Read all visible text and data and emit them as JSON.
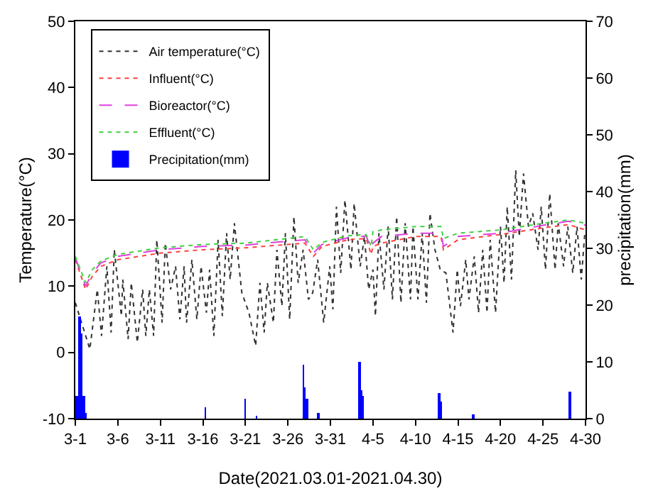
{
  "chart_data": {
    "type": "line",
    "xlabel": "Date(2021.03.01-2021.04.30)",
    "ylabel": "Temperature(°C)",
    "y2label": "precipitation(mm)",
    "x": [
      "2021-03-01",
      "2021-03-02T05:00",
      "2021-03-03",
      "2021-03-04",
      "2021-03-06",
      "2021-03-11",
      "2021-03-16",
      "2021-03-21",
      "2021-03-26",
      "2021-03-28",
      "2021-03-29",
      "2021-03-30",
      "2021-04-02",
      "2021-04-04T05:00",
      "2021-04-04T19:00",
      "2021-04-05",
      "2021-04-06",
      "2021-04-10",
      "2021-04-13",
      "2021-04-13T07:00",
      "2021-04-15",
      "2021-04-20",
      "2021-04-25",
      "2021-04-28",
      "2021-04-30"
    ],
    "series": [
      {
        "name": "Air temperature(°C)",
        "color": "#333333",
        "line_style": "dotted",
        "x": [
          "2021-03-01T00:00",
          "2021-03-02T17:00",
          "2021-03-03T14:00",
          "2021-03-04T02:00",
          "2021-03-04T17:00",
          "2021-03-05T05:00",
          "2021-03-05T14:00",
          "2021-03-06T10:00",
          "2021-03-06T14:00",
          "2021-03-07T05:00",
          "2021-03-07T14:00",
          "2021-03-08T07:00",
          "2021-03-08T22:00",
          "2021-03-09T07:00",
          "2021-03-09T17:00",
          "2021-03-10T05:00",
          "2021-03-10T14:00",
          "2021-03-11T05:00",
          "2021-03-11T14:00",
          "2021-03-12T05:00",
          "2021-03-12T19:00",
          "2021-03-13T07:00",
          "2021-03-13T19:00",
          "2021-03-14T02:00",
          "2021-03-14T17:00",
          "2021-03-15T07:00",
          "2021-03-15T19:00",
          "2021-03-16T10:00",
          "2021-03-16T19:00",
          "2021-03-17T07:00",
          "2021-03-17T19:00",
          "2021-03-18T07:00",
          "2021-03-18T19:00",
          "2021-03-19T05:00",
          "2021-03-19T17:00",
          "2021-03-20T14:00",
          "2021-03-21T10:00",
          "2021-03-22T05:00",
          "2021-03-22T17:00",
          "2021-03-23T05:00",
          "2021-03-23T14:00",
          "2021-03-24T07:00",
          "2021-03-24T17:00",
          "2021-03-25T07:00",
          "2021-03-25T17:00",
          "2021-03-26T05:00",
          "2021-03-26T17:00",
          "2021-03-27T05:00",
          "2021-03-27T19:00",
          "2021-03-28T10:00",
          "2021-03-28T22:00",
          "2021-03-29T12:00",
          "2021-03-30T05:00",
          "2021-03-30T22:00",
          "2021-03-31T07:00",
          "2021-03-31T17:00",
          "2021-04-01T05:00",
          "2021-04-01T17:00",
          "2021-04-02T10:00",
          "2021-04-02T19:00",
          "2021-04-03T12:00",
          "2021-04-04T00:00",
          "2021-04-04T12:00",
          "2021-04-05T00:00",
          "2021-04-05T07:00",
          "2021-04-05T17:00",
          "2021-04-06T07:00",
          "2021-04-06T19:00",
          "2021-04-07T07:00",
          "2021-04-07T19:00",
          "2021-04-08T07:00",
          "2021-04-08T19:00",
          "2021-04-09T10:00",
          "2021-04-09T17:00",
          "2021-04-10T07:00",
          "2021-04-10T19:00",
          "2021-04-11T07:00",
          "2021-04-11T17:00",
          "2021-04-12T07:00",
          "2021-04-12T22:00",
          "2021-04-13T14:00",
          "2021-04-14T10:00",
          "2021-04-14T22:00",
          "2021-04-15T07:00",
          "2021-04-15T22:00",
          "2021-04-16T07:00",
          "2021-04-16T22:00",
          "2021-04-17T10:00",
          "2021-04-17T22:00",
          "2021-04-18T10:00",
          "2021-04-18T19:00",
          "2021-04-19T10:00",
          "2021-04-20T00:00",
          "2021-04-20T10:00",
          "2021-04-20T19:00",
          "2021-04-21T07:00",
          "2021-04-21T19:00",
          "2021-04-22T05:00",
          "2021-04-22T17:00",
          "2021-04-23T07:00",
          "2021-04-23T19:00",
          "2021-04-24T10:00",
          "2021-04-24T19:00",
          "2021-04-25T07:00",
          "2021-04-25T19:00",
          "2021-04-26T10:00",
          "2021-04-26T19:00",
          "2021-04-27T10:00",
          "2021-04-27T22:00",
          "2021-04-28T12:00",
          "2021-04-29T00:00",
          "2021-04-29T12:00",
          "2021-04-29T22:00"
        ],
        "values": [
          7.5,
          0.5,
          9.5,
          2.5,
          13,
          3,
          15.5,
          5.5,
          11,
          2,
          10.5,
          1.5,
          9.5,
          2.5,
          9.5,
          2.5,
          17,
          4.5,
          16.5,
          9.5,
          13,
          5,
          13,
          4.5,
          14,
          5,
          13,
          6,
          12.5,
          2.5,
          17,
          5.5,
          18,
          11,
          19.5,
          9,
          6,
          1,
          10.5,
          3,
          10.5,
          4.5,
          15.5,
          7,
          18,
          5,
          20.5,
          10.5,
          15.5,
          8,
          9,
          14,
          4.5,
          13,
          6.5,
          22,
          12,
          23,
          12.5,
          22.5,
          13,
          17.5,
          9.5,
          12.5,
          5.5,
          18,
          9.5,
          19,
          8,
          20.5,
          7.5,
          19.5,
          8,
          19,
          8,
          18,
          7.5,
          21,
          15.5,
          12.5,
          12,
          3,
          12.5,
          7,
          14,
          8,
          14.5,
          6,
          15.5,
          6,
          17,
          6,
          19,
          10.5,
          22,
          11,
          27.5,
          17.5,
          27,
          19,
          21,
          15.5,
          22,
          12.5,
          24,
          12.5,
          19.5,
          13,
          19,
          12,
          19,
          11,
          18
        ]
      },
      {
        "name": "Influent(°C)",
        "color": "#ff4040",
        "line_style": "dotted",
        "values": [
          14,
          9.5,
          11.5,
          13,
          14,
          15,
          15.5,
          15.8,
          16.3,
          16.5,
          14.5,
          16,
          17,
          17.2,
          14.8,
          16,
          16.5,
          17.5,
          17.5,
          15.5,
          17,
          17.8,
          18.8,
          19.3,
          18.5
        ]
      },
      {
        "name": "Bioreactor(°C)",
        "color": "#e040e0",
        "line_style": "dashed",
        "values": [
          14.3,
          10,
          12,
          13.5,
          14.5,
          15.5,
          16,
          16.2,
          16.8,
          17,
          15,
          16.3,
          17.3,
          17.6,
          15.5,
          16.5,
          17.5,
          18,
          18,
          16,
          17.5,
          18,
          19.2,
          19.8,
          19.2
        ]
      },
      {
        "name": "Effluent(°C)",
        "color": "#40d040",
        "line_style": "dotted",
        "values": [
          14.5,
          10.5,
          12.5,
          13.8,
          14.8,
          15.8,
          16.3,
          16.5,
          17.2,
          17.5,
          15.5,
          16.6,
          17.6,
          17.8,
          16,
          18.2,
          18.5,
          19,
          19,
          17.2,
          18,
          18.5,
          19.5,
          20,
          19.5
        ]
      },
      {
        "name": "Precipitation(mm)",
        "color": "#0000ff",
        "type": "bar",
        "axis": "y2",
        "x": [
          "2021-03-01T05:00",
          "2021-03-01T11:00",
          "2021-03-01T17:00",
          "2021-03-01T23:00",
          "2021-03-02T05:00",
          "2021-03-16T07:00",
          "2021-03-21T00:00",
          "2021-03-22T07:00",
          "2021-03-27T19:00",
          "2021-03-28T00:00",
          "2021-03-28T05:00",
          "2021-03-29T14:00",
          "2021-04-03T10:00",
          "2021-04-03T14:00",
          "2021-04-03T19:00",
          "2021-04-12T19:00",
          "2021-04-13T00:00",
          "2021-04-16T19:00",
          "2021-04-28T05:00"
        ],
        "values": [
          4,
          18,
          15,
          4,
          1,
          2,
          3.5,
          0.3,
          9.5,
          5.5,
          3.5,
          1,
          10,
          5,
          4,
          4.5,
          3,
          0.7,
          4.8
        ]
      }
    ],
    "xlim": [
      "2021-03-01",
      "2021-04-30"
    ],
    "xticks": [
      {
        "value": "2021-03-01",
        "label": "3-1"
      },
      {
        "value": "2021-03-06",
        "label": "3-6"
      },
      {
        "value": "2021-03-11",
        "label": "3-11"
      },
      {
        "value": "2021-03-16",
        "label": "3-16"
      },
      {
        "value": "2021-03-21",
        "label": "3-21"
      },
      {
        "value": "2021-03-26",
        "label": "3-26"
      },
      {
        "value": "2021-03-31",
        "label": "3-31"
      },
      {
        "value": "2021-04-05",
        "label": "4-5"
      },
      {
        "value": "2021-04-10",
        "label": "4-10"
      },
      {
        "value": "2021-04-15",
        "label": "4-15"
      },
      {
        "value": "2021-04-20",
        "label": "4-20"
      },
      {
        "value": "2021-04-25",
        "label": "4-25"
      },
      {
        "value": "2021-04-30",
        "label": "4-30"
      }
    ],
    "ylim": [
      -10,
      50
    ],
    "yticks": [
      -10,
      0,
      10,
      20,
      30,
      40,
      50
    ],
    "y2lim": [
      0,
      70
    ],
    "y2ticks": [
      0,
      10,
      20,
      30,
      40,
      50,
      60,
      70
    ],
    "legend": "top left",
    "grid": false,
    "marker": "none"
  }
}
